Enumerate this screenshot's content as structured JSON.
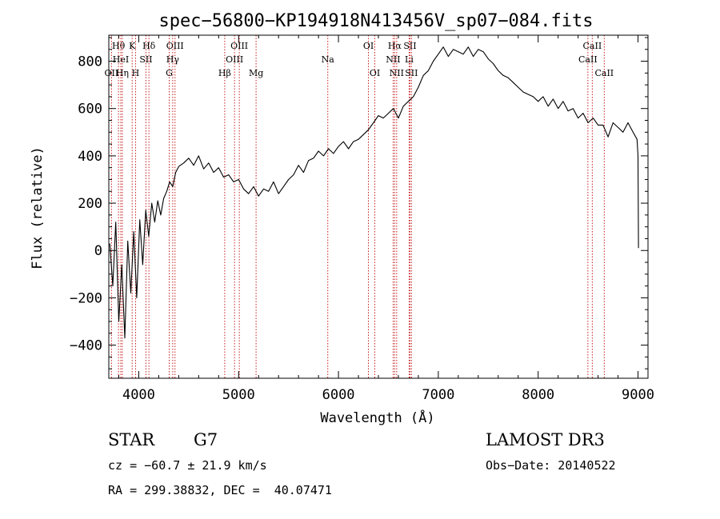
{
  "chart_data": {
    "type": "line",
    "title": "spec−56800−KP194918N413456V_sp07−084.fits",
    "xlabel": "Wavelength (Å)",
    "ylabel": "Flux (relative)",
    "xlim": [
      3700,
      9100
    ],
    "ylim": [
      -540,
      910
    ],
    "xticks": [
      4000,
      5000,
      6000,
      7000,
      8000,
      9000
    ],
    "yticks": [
      -400,
      -200,
      0,
      200,
      400,
      600,
      800
    ],
    "xtick_labels": [
      "4000",
      "5000",
      "6000",
      "7000",
      "8000",
      "9000"
    ],
    "ytick_labels": [
      "−400",
      "−200",
      "0",
      "200",
      "400",
      "600",
      "800"
    ],
    "grid": false,
    "series": [
      {
        "name": "spectrum",
        "x": [
          3710,
          3740,
          3770,
          3800,
          3830,
          3860,
          3890,
          3920,
          3950,
          3980,
          4010,
          4040,
          4070,
          4100,
          4130,
          4160,
          4190,
          4220,
          4250,
          4280,
          4310,
          4340,
          4370,
          4400,
          4450,
          4500,
          4550,
          4600,
          4650,
          4700,
          4750,
          4800,
          4850,
          4900,
          4950,
          5000,
          5050,
          5100,
          5150,
          5200,
          5250,
          5300,
          5350,
          5400,
          5450,
          5500,
          5550,
          5600,
          5650,
          5700,
          5750,
          5800,
          5850,
          5900,
          5950,
          6000,
          6050,
          6100,
          6150,
          6200,
          6250,
          6300,
          6350,
          6400,
          6450,
          6500,
          6550,
          6600,
          6650,
          6700,
          6750,
          6800,
          6850,
          6900,
          6950,
          7000,
          7050,
          7100,
          7150,
          7200,
          7250,
          7300,
          7350,
          7400,
          7450,
          7500,
          7550,
          7600,
          7650,
          7700,
          7750,
          7800,
          7850,
          7900,
          7950,
          8000,
          8050,
          8100,
          8150,
          8200,
          8250,
          8300,
          8350,
          8400,
          8450,
          8500,
          8550,
          8600,
          8650,
          8700,
          8750,
          8800,
          8850,
          8900,
          8950,
          8990,
          9000,
          9005
        ],
        "y": [
          30,
          -150,
          120,
          -300,
          -60,
          -370,
          40,
          -180,
          80,
          -200,
          130,
          -60,
          170,
          60,
          200,
          120,
          210,
          150,
          220,
          250,
          290,
          270,
          330,
          355,
          370,
          390,
          360,
          400,
          345,
          370,
          330,
          350,
          310,
          320,
          290,
          300,
          260,
          240,
          270,
          230,
          260,
          250,
          290,
          240,
          270,
          300,
          320,
          360,
          330,
          380,
          390,
          420,
          400,
          430,
          410,
          440,
          460,
          430,
          460,
          470,
          490,
          510,
          540,
          570,
          560,
          580,
          600,
          560,
          610,
          630,
          650,
          690,
          740,
          760,
          800,
          830,
          860,
          820,
          850,
          840,
          830,
          860,
          820,
          850,
          840,
          810,
          790,
          760,
          740,
          730,
          710,
          690,
          670,
          660,
          650,
          630,
          650,
          610,
          640,
          600,
          630,
          590,
          600,
          560,
          580,
          540,
          560,
          530,
          530,
          480,
          540,
          520,
          500,
          540,
          500,
          470,
          400,
          10
        ]
      }
    ],
    "lines": [
      {
        "label": "Hθ",
        "x": 3797,
        "row": 1
      },
      {
        "label": "OII",
        "x": 3727,
        "row": 3
      },
      {
        "label": "HeI",
        "x": 3820,
        "row": 2
      },
      {
        "label": "Hη",
        "x": 3835,
        "row": 3
      },
      {
        "label": "K",
        "x": 3934,
        "row": 1
      },
      {
        "label": "H",
        "x": 3968,
        "row": 3
      },
      {
        "label": "Hδ",
        "x": 4102,
        "row": 1
      },
      {
        "label": "SII",
        "x": 4072,
        "row": 2
      },
      {
        "label": "OIII",
        "x": 4363,
        "row": 1
      },
      {
        "label": "Hγ",
        "x": 4340,
        "row": 2
      },
      {
        "label": "G",
        "x": 4305,
        "row": 3
      },
      {
        "label": "Hβ",
        "x": 4861,
        "row": 3
      },
      {
        "label": "OIII",
        "x": 5007,
        "row": 1
      },
      {
        "label": "OIII",
        "x": 4959,
        "row": 2
      },
      {
        "label": "Mg",
        "x": 5175,
        "row": 3
      },
      {
        "label": "Na",
        "x": 5893,
        "row": 2
      },
      {
        "label": "OI",
        "x": 6300,
        "row": 1
      },
      {
        "label": "OI",
        "x": 6364,
        "row": 3
      },
      {
        "label": "Hα",
        "x": 6563,
        "row": 1
      },
      {
        "label": "NII",
        "x": 6548,
        "row": 2
      },
      {
        "label": "NII",
        "x": 6583,
        "row": 3
      },
      {
        "label": "SII",
        "x": 6716,
        "row": 1
      },
      {
        "label": "Li",
        "x": 6708,
        "row": 2
      },
      {
        "label": "SII",
        "x": 6731,
        "row": 3
      },
      {
        "label": "CaII",
        "x": 8542,
        "row": 1
      },
      {
        "label": "CaII",
        "x": 8498,
        "row": 2
      },
      {
        "label": "CaII",
        "x": 8662,
        "row": 3
      }
    ]
  },
  "info": {
    "class": "STAR",
    "subclass": "G7",
    "survey": "LAMOST DR3",
    "cz": "cz = −60.7 ± 21.9 km/s",
    "obs_date": "Obs−Date: 20140522",
    "coords": "RA = 299.38832, DEC =  40.07471"
  }
}
